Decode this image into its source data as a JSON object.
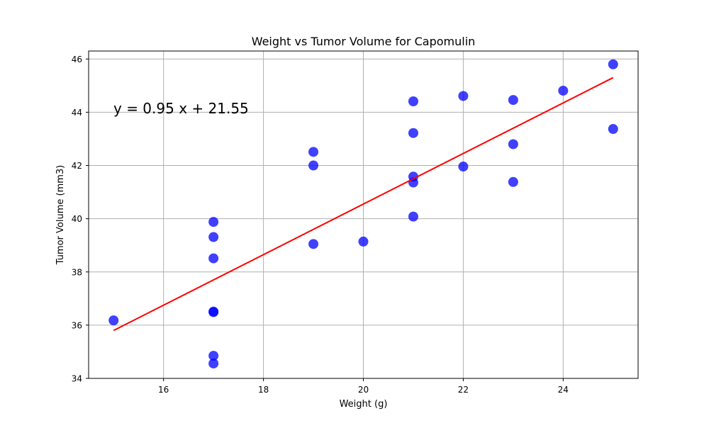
{
  "chart_data": {
    "type": "scatter",
    "title": "Weight vs Tumor Volume for Capomulin",
    "xlabel": "Weight (g)",
    "ylabel": "Tumor Volume (mm3)",
    "xlim": [
      14.5,
      25.5
    ],
    "ylim": [
      34,
      46.3
    ],
    "xticks": [
      "16",
      "18",
      "20",
      "22",
      "24"
    ],
    "xtick_values": [
      16,
      18,
      20,
      22,
      24
    ],
    "yticks": [
      "34",
      "36",
      "38",
      "40",
      "42",
      "44",
      "46"
    ],
    "ytick_values": [
      34,
      36,
      38,
      40,
      42,
      44,
      46
    ],
    "grid": true,
    "annotation": "y = 0.95 x + 21.55",
    "point_color": "#0000ff",
    "line_color": "#ff0000",
    "points": [
      {
        "x": 15,
        "y": 36.18
      },
      {
        "x": 17,
        "y": 39.88
      },
      {
        "x": 17,
        "y": 39.31
      },
      {
        "x": 17,
        "y": 38.51
      },
      {
        "x": 17,
        "y": 36.51
      },
      {
        "x": 17,
        "y": 36.49
      },
      {
        "x": 17,
        "y": 34.85
      },
      {
        "x": 17,
        "y": 34.56
      },
      {
        "x": 19,
        "y": 42.51
      },
      {
        "x": 19,
        "y": 42.0
      },
      {
        "x": 19,
        "y": 39.05
      },
      {
        "x": 20,
        "y": 39.14
      },
      {
        "x": 21,
        "y": 44.41
      },
      {
        "x": 21,
        "y": 43.22
      },
      {
        "x": 21,
        "y": 41.58
      },
      {
        "x": 21,
        "y": 41.36
      },
      {
        "x": 21,
        "y": 40.08
      },
      {
        "x": 22,
        "y": 44.61
      },
      {
        "x": 22,
        "y": 41.96
      },
      {
        "x": 23,
        "y": 44.46
      },
      {
        "x": 23,
        "y": 42.8
      },
      {
        "x": 23,
        "y": 41.38
      },
      {
        "x": 24,
        "y": 44.81
      },
      {
        "x": 25,
        "y": 45.8
      },
      {
        "x": 25,
        "y": 43.37
      }
    ],
    "regression": {
      "slope": 0.95,
      "intercept": 21.55,
      "x_range": [
        15,
        25
      ]
    }
  }
}
